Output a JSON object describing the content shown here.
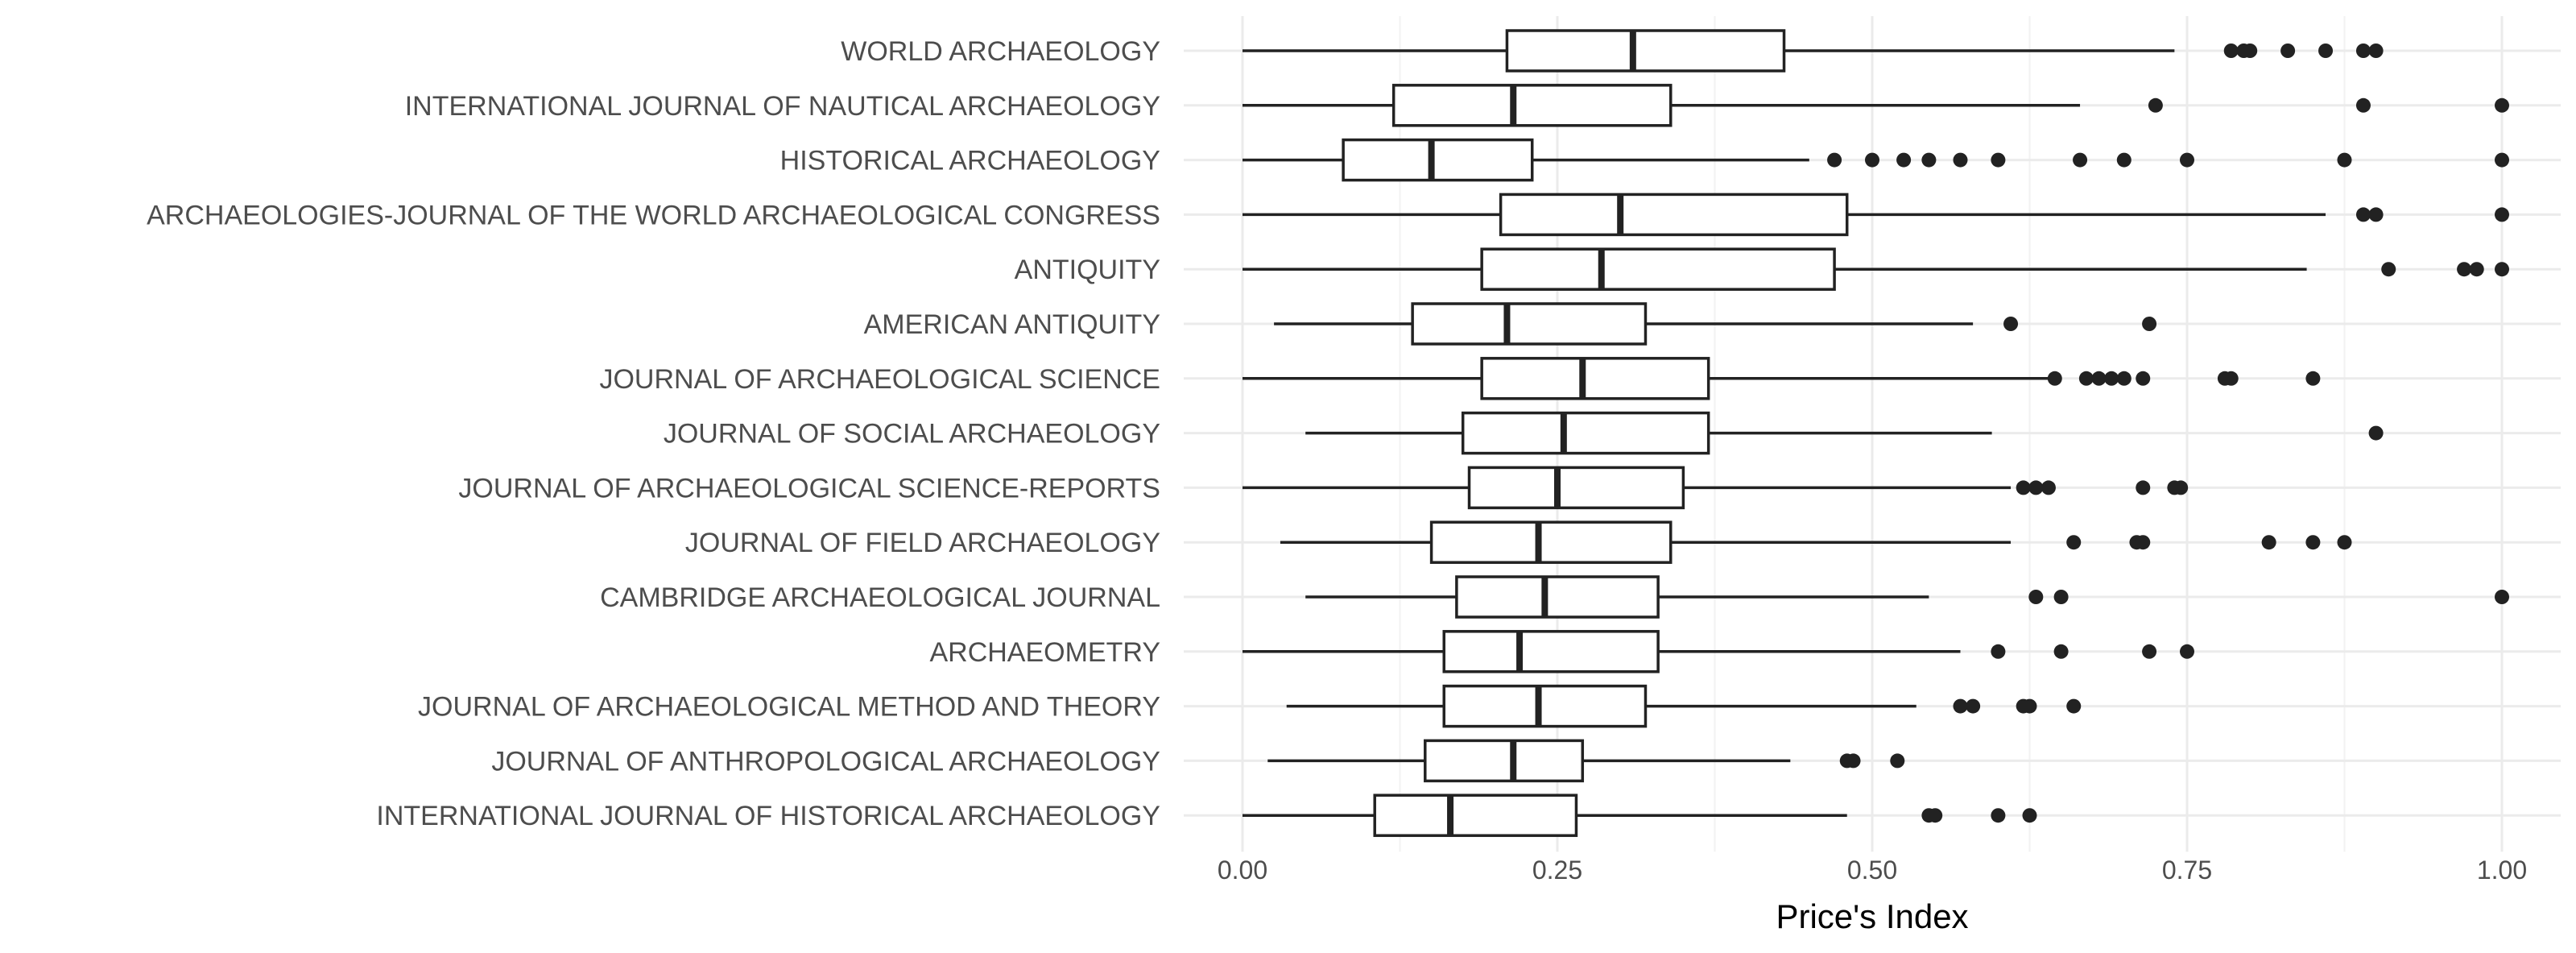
{
  "chart_data": {
    "type": "boxplot",
    "xlabel": "Price's Index",
    "ylabel": "",
    "xlim": [
      0,
      1
    ],
    "xticks": [
      0,
      0.25,
      0.5,
      0.75,
      1
    ],
    "xtick_labels": [
      "0.00",
      "0.25",
      "0.50",
      "0.75",
      "1.00"
    ],
    "grid": true,
    "orientation": "horizontal",
    "series": [
      {
        "category": "WORLD ARCHAEOLOGY",
        "whisker_low": 0.0,
        "q1": 0.21,
        "median": 0.31,
        "q3": 0.43,
        "whisker_high": 0.74,
        "outliers": [
          0.785,
          0.795,
          0.8,
          0.83,
          0.86,
          0.89,
          0.9
        ]
      },
      {
        "category": "INTERNATIONAL JOURNAL OF NAUTICAL ARCHAEOLOGY",
        "whisker_low": 0.0,
        "q1": 0.12,
        "median": 0.215,
        "q3": 0.34,
        "whisker_high": 0.665,
        "outliers": [
          0.725,
          0.89,
          1.0
        ]
      },
      {
        "category": "HISTORICAL ARCHAEOLOGY",
        "whisker_low": 0.0,
        "q1": 0.08,
        "median": 0.15,
        "q3": 0.23,
        "whisker_high": 0.45,
        "outliers": [
          0.47,
          0.5,
          0.525,
          0.545,
          0.57,
          0.6,
          0.665,
          0.7,
          0.75,
          0.875,
          1.0
        ]
      },
      {
        "category": "ARCHAEOLOGIES-JOURNAL OF THE WORLD ARCHAEOLOGICAL CONGRESS",
        "whisker_low": 0.0,
        "q1": 0.205,
        "median": 0.3,
        "q3": 0.48,
        "whisker_high": 0.86,
        "outliers": [
          0.89,
          0.9,
          1.0
        ]
      },
      {
        "category": "ANTIQUITY",
        "whisker_low": 0.0,
        "q1": 0.19,
        "median": 0.285,
        "q3": 0.47,
        "whisker_high": 0.845,
        "outliers": [
          0.91,
          0.97,
          0.98,
          1.0
        ]
      },
      {
        "category": "AMERICAN ANTIQUITY",
        "whisker_low": 0.025,
        "q1": 0.135,
        "median": 0.21,
        "q3": 0.32,
        "whisker_high": 0.58,
        "outliers": [
          0.61,
          0.72
        ]
      },
      {
        "category": "JOURNAL OF ARCHAEOLOGICAL SCIENCE",
        "whisker_low": 0.0,
        "q1": 0.19,
        "median": 0.27,
        "q3": 0.37,
        "whisker_high": 0.64,
        "outliers": [
          0.645,
          0.67,
          0.68,
          0.69,
          0.7,
          0.715,
          0.78,
          0.785,
          0.85
        ]
      },
      {
        "category": "JOURNAL OF SOCIAL ARCHAEOLOGY",
        "whisker_low": 0.05,
        "q1": 0.175,
        "median": 0.255,
        "q3": 0.37,
        "whisker_high": 0.595,
        "outliers": [
          0.9
        ]
      },
      {
        "category": "JOURNAL OF ARCHAEOLOGICAL SCIENCE-REPORTS",
        "whisker_low": 0.0,
        "q1": 0.18,
        "median": 0.25,
        "q3": 0.35,
        "whisker_high": 0.61,
        "outliers": [
          0.62,
          0.63,
          0.64,
          0.715,
          0.74,
          0.745
        ]
      },
      {
        "category": "JOURNAL OF FIELD ARCHAEOLOGY",
        "whisker_low": 0.03,
        "q1": 0.15,
        "median": 0.235,
        "q3": 0.34,
        "whisker_high": 0.61,
        "outliers": [
          0.66,
          0.71,
          0.715,
          0.815,
          0.85,
          0.875
        ]
      },
      {
        "category": "CAMBRIDGE ARCHAEOLOGICAL JOURNAL",
        "whisker_low": 0.05,
        "q1": 0.17,
        "median": 0.24,
        "q3": 0.33,
        "whisker_high": 0.545,
        "outliers": [
          0.63,
          0.65,
          1.0
        ]
      },
      {
        "category": "ARCHAEOMETRY",
        "whisker_low": 0.0,
        "q1": 0.16,
        "median": 0.22,
        "q3": 0.33,
        "whisker_high": 0.57,
        "outliers": [
          0.6,
          0.65,
          0.72,
          0.75
        ]
      },
      {
        "category": "JOURNAL OF ARCHAEOLOGICAL METHOD AND THEORY",
        "whisker_low": 0.035,
        "q1": 0.16,
        "median": 0.235,
        "q3": 0.32,
        "whisker_high": 0.535,
        "outliers": [
          0.57,
          0.58,
          0.62,
          0.625,
          0.66
        ]
      },
      {
        "category": "JOURNAL OF ANTHROPOLOGICAL ARCHAEOLOGY",
        "whisker_low": 0.02,
        "q1": 0.145,
        "median": 0.215,
        "q3": 0.27,
        "whisker_high": 0.435,
        "outliers": [
          0.48,
          0.485,
          0.52
        ]
      },
      {
        "category": "INTERNATIONAL JOURNAL OF HISTORICAL ARCHAEOLOGY",
        "whisker_low": 0.0,
        "q1": 0.105,
        "median": 0.165,
        "q3": 0.265,
        "whisker_high": 0.48,
        "outliers": [
          0.545,
          0.55,
          0.6,
          0.625
        ]
      }
    ]
  }
}
